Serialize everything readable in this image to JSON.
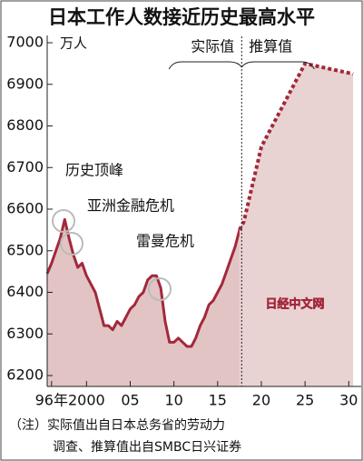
{
  "chart_data": {
    "type": "line",
    "title": "日本工作人数接近历史最高水平",
    "y_unit": "万人",
    "xlim": [
      1995.5,
      2030.8
    ],
    "ylim": [
      6200,
      7000
    ],
    "xticks": [
      {
        "value": 1996,
        "label": "96年"
      },
      2000,
      {
        "value": 2005,
        "label": "05"
      },
      {
        "value": 2010,
        "label": "10"
      },
      {
        "value": 2015,
        "label": "15"
      },
      {
        "value": 2020,
        "label": "20"
      },
      {
        "value": 2025,
        "label": "25"
      },
      {
        "value": 2030,
        "label": "30"
      }
    ],
    "yticks": [
      6200,
      6300,
      6400,
      6500,
      6600,
      6700,
      6800,
      6900,
      7000
    ],
    "series": [
      {
        "name": "实际值",
        "color": "#a3283c",
        "fill": "#e2c4c4",
        "x": [
          1995.5,
          1996,
          1996.5,
          1997,
          1997.5,
          1998,
          1998.5,
          1999,
          1999.5,
          2000,
          2000.5,
          2001,
          2001.5,
          2002,
          2002.5,
          2003,
          2003.5,
          2004,
          2004.5,
          2005,
          2005.5,
          2006,
          2006.5,
          2007,
          2007.5,
          2008,
          2008.5,
          2009,
          2009.5,
          2010,
          2010.5,
          2011,
          2011.5,
          2012,
          2012.5,
          2013,
          2013.5,
          2014,
          2014.5,
          2015,
          2015.5,
          2016,
          2016.5,
          2017,
          2017.5
        ],
        "values": [
          6445,
          6470,
          6500,
          6530,
          6575,
          6530,
          6490,
          6460,
          6470,
          6440,
          6420,
          6400,
          6360,
          6320,
          6320,
          6310,
          6330,
          6320,
          6340,
          6360,
          6370,
          6390,
          6400,
          6430,
          6440,
          6440,
          6410,
          6330,
          6280,
          6280,
          6290,
          6280,
          6270,
          6270,
          6290,
          6320,
          6340,
          6370,
          6380,
          6400,
          6420,
          6450,
          6480,
          6510,
          6550
        ]
      },
      {
        "name": "推算值",
        "color": "#a3283c",
        "fill": "#e9d2d2",
        "dashed": true,
        "x": [
          2018,
          2020,
          2025,
          2030.5
        ],
        "values": [
          6570,
          6750,
          6950,
          6925
        ]
      }
    ],
    "annotations": [
      "历史顶峰",
      "亚洲金融危机",
      "雷曼危机"
    ],
    "watermark": "日经中文网",
    "note": [
      "（注）实际值出自日本总务省的劳动力",
      "调查、推算值出自SMBC日兴证券"
    ]
  }
}
